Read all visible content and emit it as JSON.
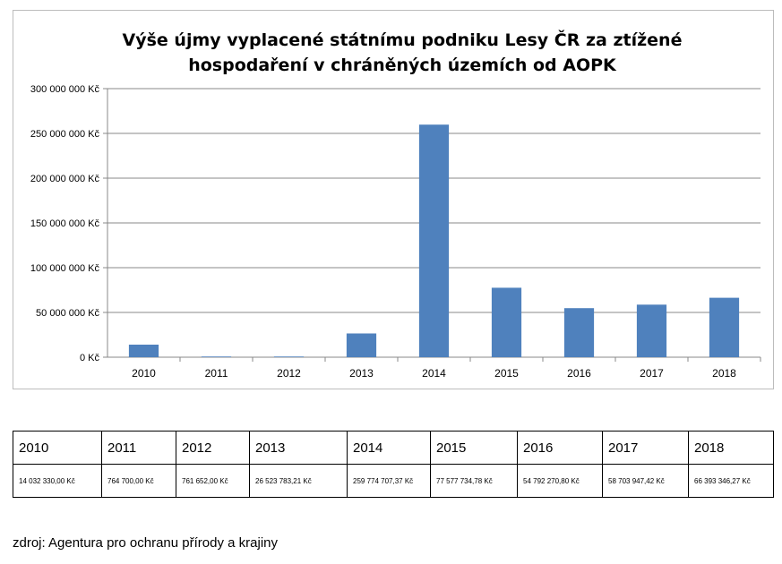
{
  "chart_data": {
    "type": "bar",
    "title": "Výše újmy vyplacené státnímu podniku Lesy ČR za ztížené hospodaření v chráněných územích od AOPK",
    "title_lines": [
      "Výše újmy vyplacené státnímu podniku Lesy ČR za ztížené",
      "hospodaření v chráněných územích od AOPK"
    ],
    "categories": [
      "2010",
      "2011",
      "2012",
      "2013",
      "2014",
      "2015",
      "2016",
      "2017",
      "2018"
    ],
    "values": [
      14032330,
      764700,
      761652,
      26523783.21,
      259774707.37,
      77577734.78,
      54792270.8,
      58703947.42,
      66393346.27
    ],
    "ylim": [
      0,
      300000000
    ],
    "yticks": [
      0,
      50000000,
      100000000,
      150000000,
      200000000,
      250000000,
      300000000
    ],
    "ytick_labels": [
      "0 Kč",
      "50 000 000 Kč",
      "100 000 000 Kč",
      "150 000 000 Kč",
      "200 000 000 Kč",
      "250 000 000 Kč",
      "300 000 000 Kč"
    ],
    "grid": true,
    "bar_color": "#4f81bd",
    "grid_color": "#888888"
  },
  "table": {
    "years": [
      "2010",
      "2011",
      "2012",
      "2013",
      "2014",
      "2015",
      "2016",
      "2017",
      "2018"
    ],
    "values": [
      "14 032 330,00 Kč",
      "764 700,00 Kč",
      "761 652,00 Kč",
      "26 523 783,21 Kč",
      "259 774 707,37 Kč",
      "77 577 734,78 Kč",
      "54 792 270,80 Kč",
      "58 703 947,42 Kč",
      "66 393 346,27 Kč"
    ]
  },
  "source": "zdroj: Agentura pro ochranu přírody a krajiny"
}
